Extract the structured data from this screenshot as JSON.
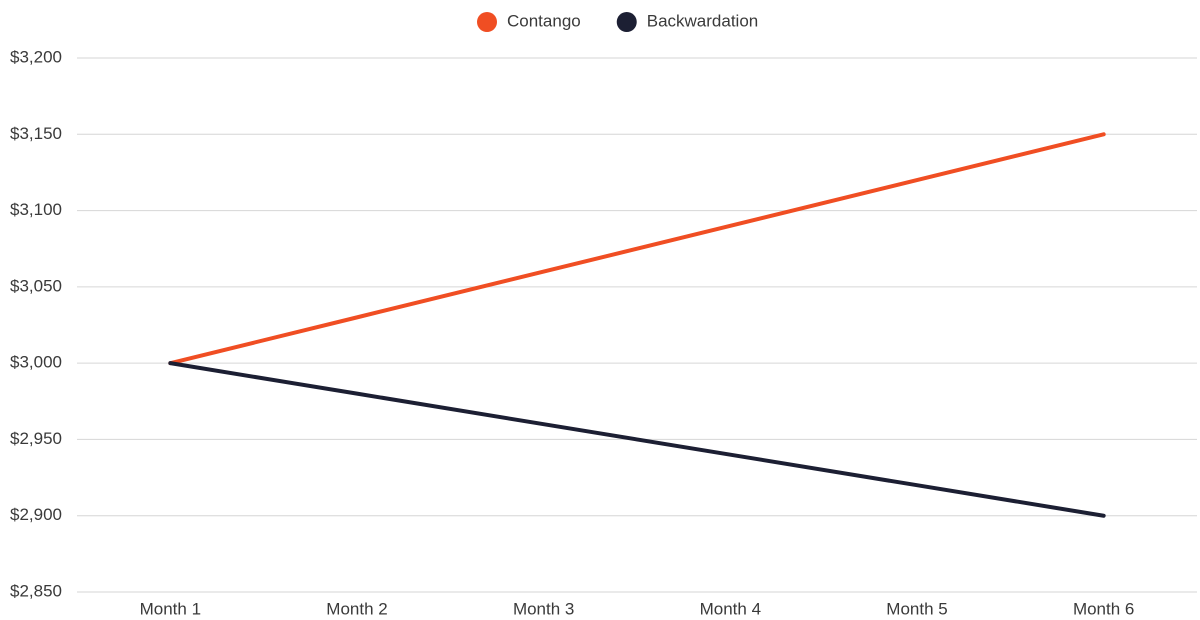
{
  "chart_data": {
    "type": "line",
    "categories": [
      "Month 1",
      "Month 2",
      "Month 3",
      "Month 4",
      "Month 5",
      "Month 6"
    ],
    "series": [
      {
        "name": "Contango",
        "color": "#f04e23",
        "values": [
          3000,
          3030,
          3060,
          3090,
          3120,
          3150
        ]
      },
      {
        "name": "Backwardation",
        "color": "#1c1f33",
        "values": [
          3000,
          2980,
          2960,
          2940,
          2920,
          2900
        ]
      }
    ],
    "ylim": [
      2850,
      3200
    ],
    "yticks": [
      {
        "value": 2850,
        "label": "$2,850"
      },
      {
        "value": 2900,
        "label": "$2,900"
      },
      {
        "value": 2950,
        "label": "$2,950"
      },
      {
        "value": 3000,
        "label": "$3,000"
      },
      {
        "value": 3050,
        "label": "$3,050"
      },
      {
        "value": 3100,
        "label": "$3,100"
      },
      {
        "value": 3150,
        "label": "$3,150"
      },
      {
        "value": 3200,
        "label": "$3,200"
      }
    ],
    "grid": true,
    "legend": "top"
  }
}
